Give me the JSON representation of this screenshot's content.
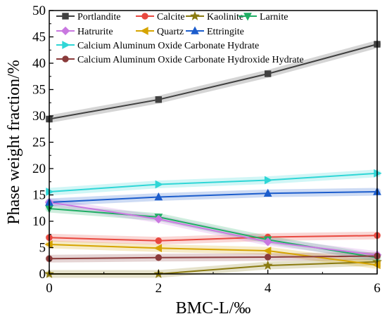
{
  "chart_data": {
    "type": "line",
    "title": "",
    "xlabel": "BMC-L/‰",
    "ylabel": "Phase weight fraction/%",
    "x": [
      0,
      2,
      4,
      6
    ],
    "xlim": [
      0,
      6
    ],
    "ylim": [
      0,
      50
    ],
    "xticks": [
      0,
      2,
      4,
      6
    ],
    "yticks": [
      0,
      5,
      10,
      15,
      20,
      25,
      30,
      35,
      40,
      45,
      50
    ],
    "grid": false,
    "legend": "top, inside plot",
    "series": [
      {
        "name": "Portlandite",
        "color": "#404040",
        "marker": "square",
        "values": [
          29.4,
          33.1,
          38.0,
          43.6
        ]
      },
      {
        "name": "Calcite",
        "color": "#e8483f",
        "marker": "circle",
        "values": [
          6.9,
          6.3,
          7.0,
          7.3
        ]
      },
      {
        "name": "Kaolinite",
        "color": "#8a7a10",
        "marker": "star",
        "values": [
          0.0,
          0.0,
          1.6,
          2.3
        ]
      },
      {
        "name": "Larnite",
        "color": "#1fae64",
        "marker": "triangle-down",
        "values": [
          12.4,
          10.8,
          6.5,
          3.1
        ]
      },
      {
        "name": "Hatrurite",
        "color": "#c978e0",
        "marker": "diamond",
        "values": [
          13.6,
          10.4,
          6.1,
          3.6
        ]
      },
      {
        "name": "Quartz",
        "color": "#d6a400",
        "marker": "triangle-left",
        "values": [
          5.6,
          4.9,
          4.4,
          1.7
        ]
      },
      {
        "name": "Ettringite",
        "color": "#1c5dcc",
        "marker": "triangle-up",
        "values": [
          13.6,
          14.6,
          15.3,
          15.6
        ]
      },
      {
        "name": "Calcium Aluminum Oxide Carbonate Hydrate",
        "color": "#2fd6d6",
        "marker": "triangle-right",
        "values": [
          15.6,
          17.0,
          17.8,
          19.1
        ]
      },
      {
        "name": "Calcium Aluminum Oxide Carbonate Hydroxide Hydrate",
        "color": "#8a3b3b",
        "marker": "circle",
        "values": [
          2.9,
          3.1,
          3.2,
          3.4
        ]
      }
    ]
  }
}
